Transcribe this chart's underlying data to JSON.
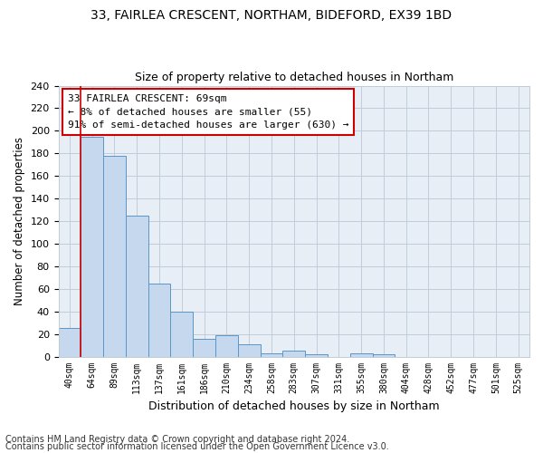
{
  "title1": "33, FAIRLEA CRESCENT, NORTHAM, BIDEFORD, EX39 1BD",
  "title2": "Size of property relative to detached houses in Northam",
  "xlabel": "Distribution of detached houses by size in Northam",
  "ylabel": "Number of detached properties",
  "footnote1": "Contains HM Land Registry data © Crown copyright and database right 2024.",
  "footnote2": "Contains public sector information licensed under the Open Government Licence v3.0.",
  "annotation_title": "33 FAIRLEA CRESCENT: 69sqm",
  "annotation_line2": "← 8% of detached houses are smaller (55)",
  "annotation_line3": "91% of semi-detached houses are larger (630) →",
  "bar_labels": [
    "40sqm",
    "64sqm",
    "89sqm",
    "113sqm",
    "137sqm",
    "161sqm",
    "186sqm",
    "210sqm",
    "234sqm",
    "258sqm",
    "283sqm",
    "307sqm",
    "331sqm",
    "355sqm",
    "380sqm",
    "404sqm",
    "428sqm",
    "452sqm",
    "477sqm",
    "501sqm",
    "525sqm"
  ],
  "bar_values": [
    25,
    195,
    178,
    125,
    65,
    40,
    16,
    19,
    11,
    3,
    5,
    2,
    0,
    3,
    2,
    0,
    0,
    0,
    0,
    0,
    0
  ],
  "bar_color": "#c5d8ed",
  "bar_edge_color": "#5a96c8",
  "bg_color": "#e8eef5",
  "grid_color": "#c0ccd8",
  "vline_color": "#cc0000",
  "ylim": [
    0,
    240
  ],
  "yticks": [
    0,
    20,
    40,
    60,
    80,
    100,
    120,
    140,
    160,
    180,
    200,
    220,
    240
  ],
  "title1_fontsize": 10,
  "title2_fontsize": 9,
  "xlabel_fontsize": 9,
  "ylabel_fontsize": 8.5,
  "tick_fontsize": 8,
  "xtick_fontsize": 7,
  "footnote_fontsize": 7,
  "annotation_fontsize": 8
}
